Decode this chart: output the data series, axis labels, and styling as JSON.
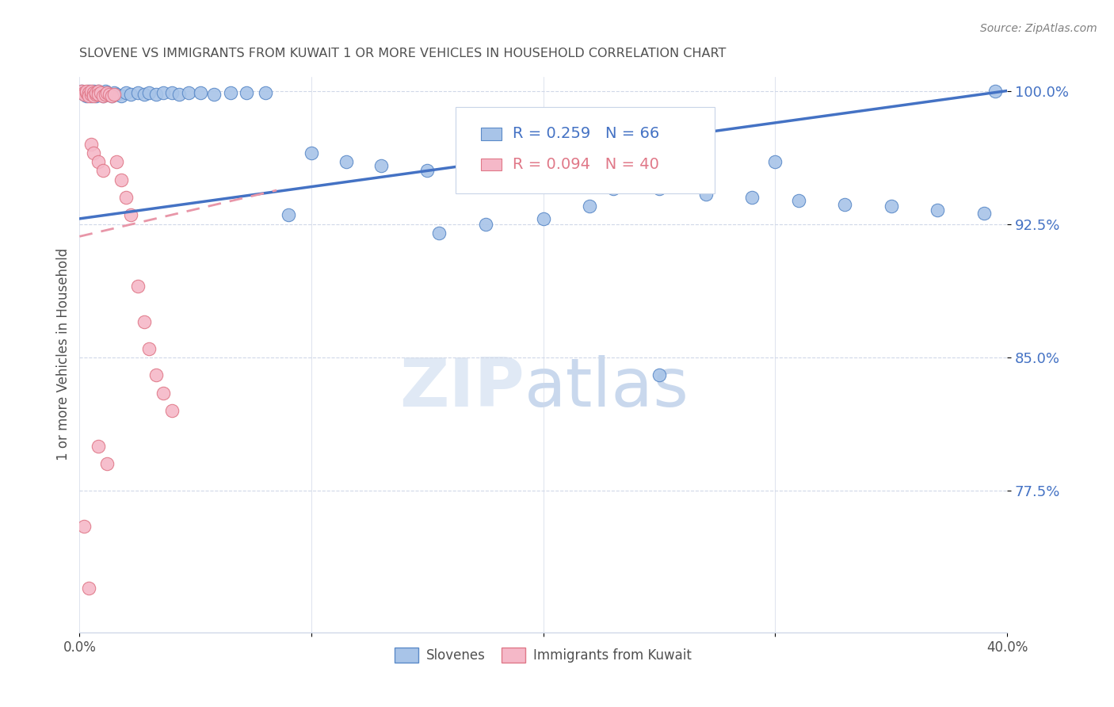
{
  "title": "SLOVENE VS IMMIGRANTS FROM KUWAIT 1 OR MORE VEHICLES IN HOUSEHOLD CORRELATION CHART",
  "source": "Source: ZipAtlas.com",
  "yaxis_label": "1 or more Vehicles in Household",
  "legend_label1": "Slovenes",
  "legend_label2": "Immigrants from Kuwait",
  "R1": 0.259,
  "N1": 66,
  "R2": 0.094,
  "N2": 40,
  "watermark_zip": "ZIP",
  "watermark_atlas": "atlas",
  "blue_scatter_color": "#a8c4e8",
  "blue_edge_color": "#5b8ac8",
  "pink_scatter_color": "#f5b8c8",
  "pink_edge_color": "#e07888",
  "blue_line_color": "#4472c4",
  "pink_line_color": "#e896a8",
  "axis_color": "#4472c4",
  "title_color": "#505050",
  "grid_color": "#d0d8e8",
  "xlim": [
    0.0,
    0.4
  ],
  "ylim": [
    0.695,
    1.008
  ],
  "yticks": [
    0.775,
    0.85,
    0.925,
    1.0
  ],
  "ytick_labels": [
    "77.5%",
    "85.0%",
    "92.5%",
    "100.0%"
  ],
  "xticks": [
    0.0,
    0.1,
    0.2,
    0.3,
    0.4
  ],
  "xtick_labels": [
    "0.0%",
    "",
    "",
    "",
    "40.0%"
  ],
  "blue_x": [
    0.001,
    0.002,
    0.002,
    0.003,
    0.003,
    0.004,
    0.004,
    0.005,
    0.005,
    0.006,
    0.006,
    0.007,
    0.007,
    0.008,
    0.008,
    0.009,
    0.009,
    0.01,
    0.01,
    0.011,
    0.011,
    0.012,
    0.013,
    0.014,
    0.015,
    0.016,
    0.018,
    0.02,
    0.022,
    0.025,
    0.028,
    0.03,
    0.033,
    0.036,
    0.04,
    0.043,
    0.047,
    0.052,
    0.058,
    0.065,
    0.072,
    0.08,
    0.09,
    0.1,
    0.115,
    0.13,
    0.15,
    0.17,
    0.19,
    0.21,
    0.23,
    0.25,
    0.27,
    0.29,
    0.31,
    0.33,
    0.35,
    0.37,
    0.39,
    0.395,
    0.155,
    0.2,
    0.22,
    0.175,
    0.3,
    0.25
  ],
  "blue_y": [
    1.0,
    0.998,
    0.999,
    0.999,
    0.997,
    1.0,
    0.998,
    0.997,
    0.999,
    1.0,
    0.998,
    0.999,
    0.997,
    0.998,
    1.0,
    0.998,
    0.999,
    0.997,
    0.999,
    0.998,
    1.0,
    0.999,
    0.998,
    0.997,
    0.999,
    0.998,
    0.997,
    0.999,
    0.998,
    0.999,
    0.998,
    0.999,
    0.998,
    0.999,
    0.999,
    0.998,
    0.999,
    0.999,
    0.998,
    0.999,
    0.999,
    0.999,
    0.93,
    0.965,
    0.96,
    0.958,
    0.955,
    0.952,
    0.95,
    0.948,
    0.945,
    0.945,
    0.942,
    0.94,
    0.938,
    0.936,
    0.935,
    0.933,
    0.931,
    1.0,
    0.92,
    0.928,
    0.935,
    0.925,
    0.96,
    0.84
  ],
  "pink_x": [
    0.001,
    0.002,
    0.002,
    0.003,
    0.003,
    0.004,
    0.004,
    0.005,
    0.005,
    0.006,
    0.006,
    0.007,
    0.007,
    0.008,
    0.008,
    0.009,
    0.01,
    0.011,
    0.012,
    0.013,
    0.014,
    0.015,
    0.016,
    0.018,
    0.02,
    0.022,
    0.025,
    0.028,
    0.03,
    0.033,
    0.036,
    0.04,
    0.005,
    0.006,
    0.008,
    0.01,
    0.002,
    0.004,
    0.008,
    0.012
  ],
  "pink_y": [
    1.0,
    0.999,
    0.998,
    0.999,
    1.0,
    0.999,
    0.997,
    0.998,
    1.0,
    0.999,
    0.997,
    0.998,
    0.999,
    1.0,
    0.998,
    0.999,
    0.997,
    0.998,
    0.999,
    0.998,
    0.997,
    0.998,
    0.96,
    0.95,
    0.94,
    0.93,
    0.89,
    0.87,
    0.855,
    0.84,
    0.83,
    0.82,
    0.97,
    0.965,
    0.96,
    0.955,
    0.755,
    0.72,
    0.8,
    0.79
  ],
  "blue_trend_x": [
    0.0,
    0.4
  ],
  "blue_trend_y": [
    0.928,
    1.0
  ],
  "pink_trend_x": [
    0.0,
    0.085
  ],
  "pink_trend_y": [
    0.918,
    0.944
  ]
}
